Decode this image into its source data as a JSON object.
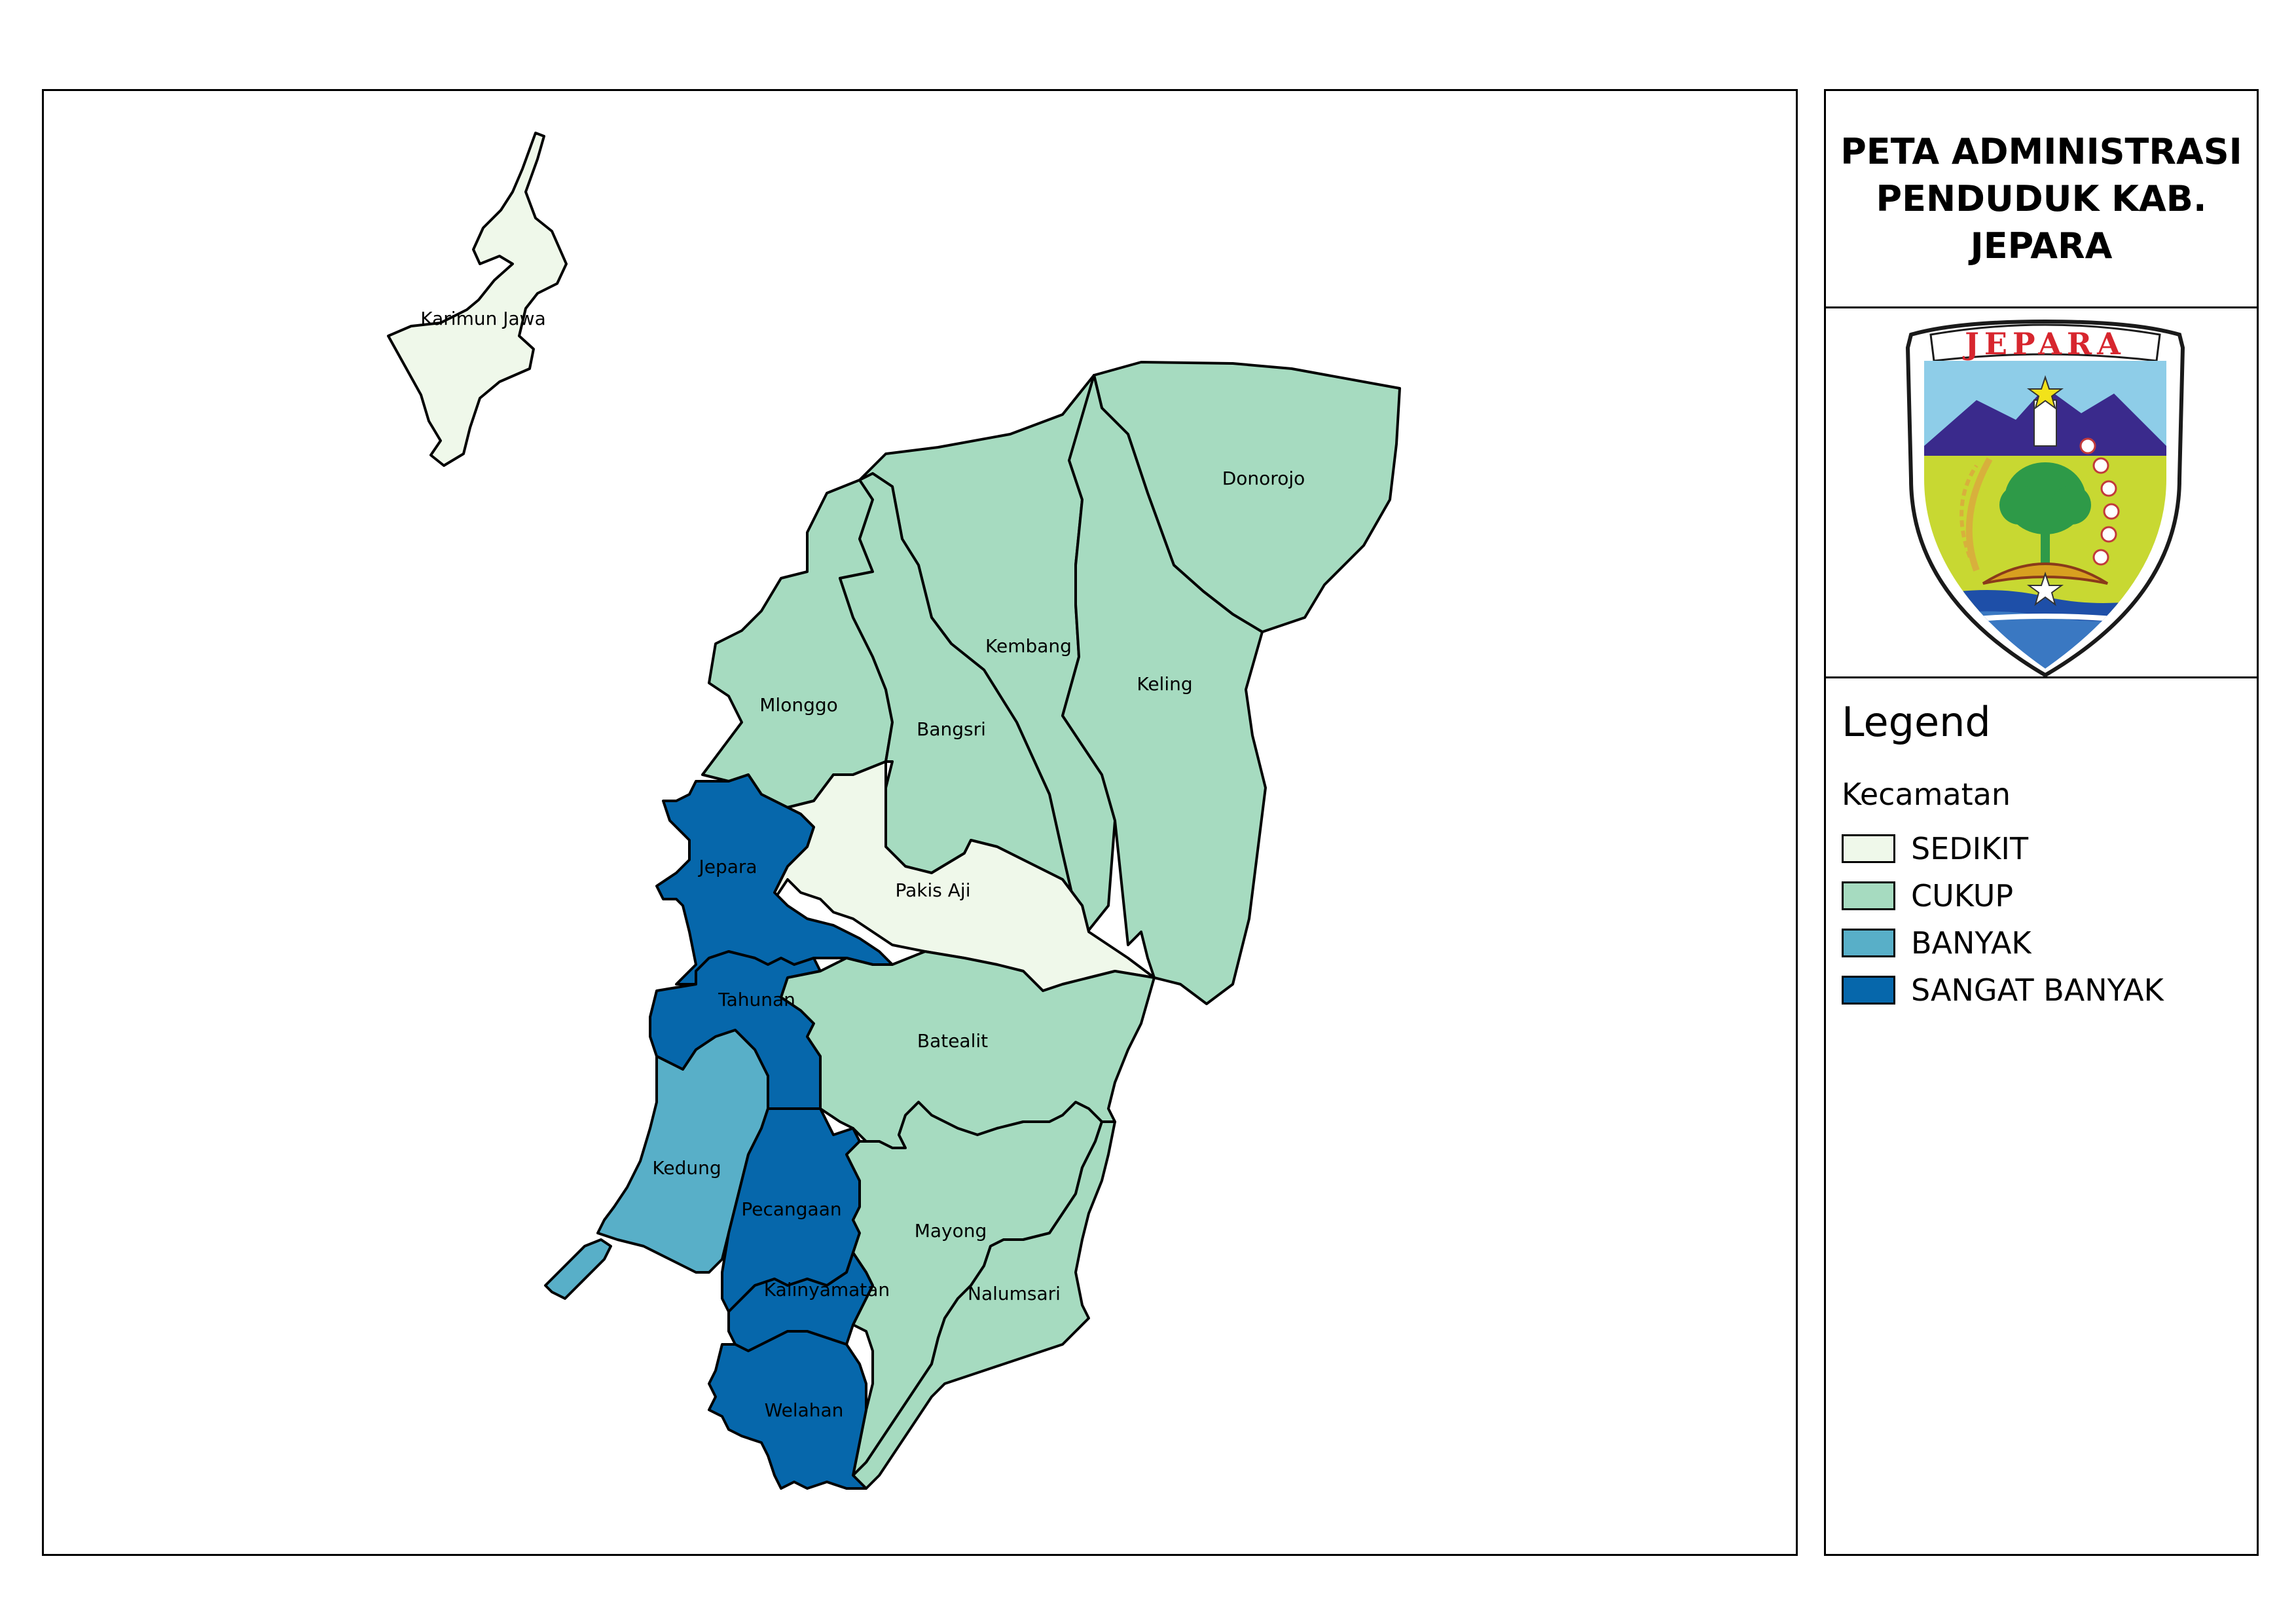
{
  "title": "PETA ADMINISTRASI\nPENDUDUK KAB.\nJEPARA",
  "logo": {
    "text": "JEPARA",
    "icon": "jepara-coat-of-arms"
  },
  "legend": {
    "title": "Legend",
    "subtitle": "Kecamatan",
    "items": [
      {
        "label": "SEDIKIT",
        "color": "#eff8ea"
      },
      {
        "label": "CUKUP",
        "color": "#a6dbc0"
      },
      {
        "label": "BANYAK",
        "color": "#58afc8"
      },
      {
        "label": "SANGAT BANYAK",
        "color": "#0667ab"
      }
    ]
  },
  "districts": [
    {
      "name": "Karimun Jawa",
      "class": "SEDIKIT"
    },
    {
      "name": "Donorojo",
      "class": "CUKUP"
    },
    {
      "name": "Kembang",
      "class": "CUKUP"
    },
    {
      "name": "Keling",
      "class": "CUKUP"
    },
    {
      "name": "Mlonggo",
      "class": "CUKUP"
    },
    {
      "name": "Bangsri",
      "class": "CUKUP"
    },
    {
      "name": "Pakis Aji",
      "class": "SEDIKIT"
    },
    {
      "name": "Jepara",
      "class": "SANGAT BANYAK"
    },
    {
      "name": "Tahunan",
      "class": "SANGAT BANYAK"
    },
    {
      "name": "Batealit",
      "class": "CUKUP"
    },
    {
      "name": "Kedung",
      "class": "BANYAK"
    },
    {
      "name": "Pecangaan",
      "class": "SANGAT BANYAK"
    },
    {
      "name": "Mayong",
      "class": "CUKUP"
    },
    {
      "name": "Kalinyamatan",
      "class": "SANGAT BANYAK"
    },
    {
      "name": "Nalumsari",
      "class": "CUKUP"
    },
    {
      "name": "Welahan",
      "class": "SANGAT BANYAK"
    }
  ]
}
